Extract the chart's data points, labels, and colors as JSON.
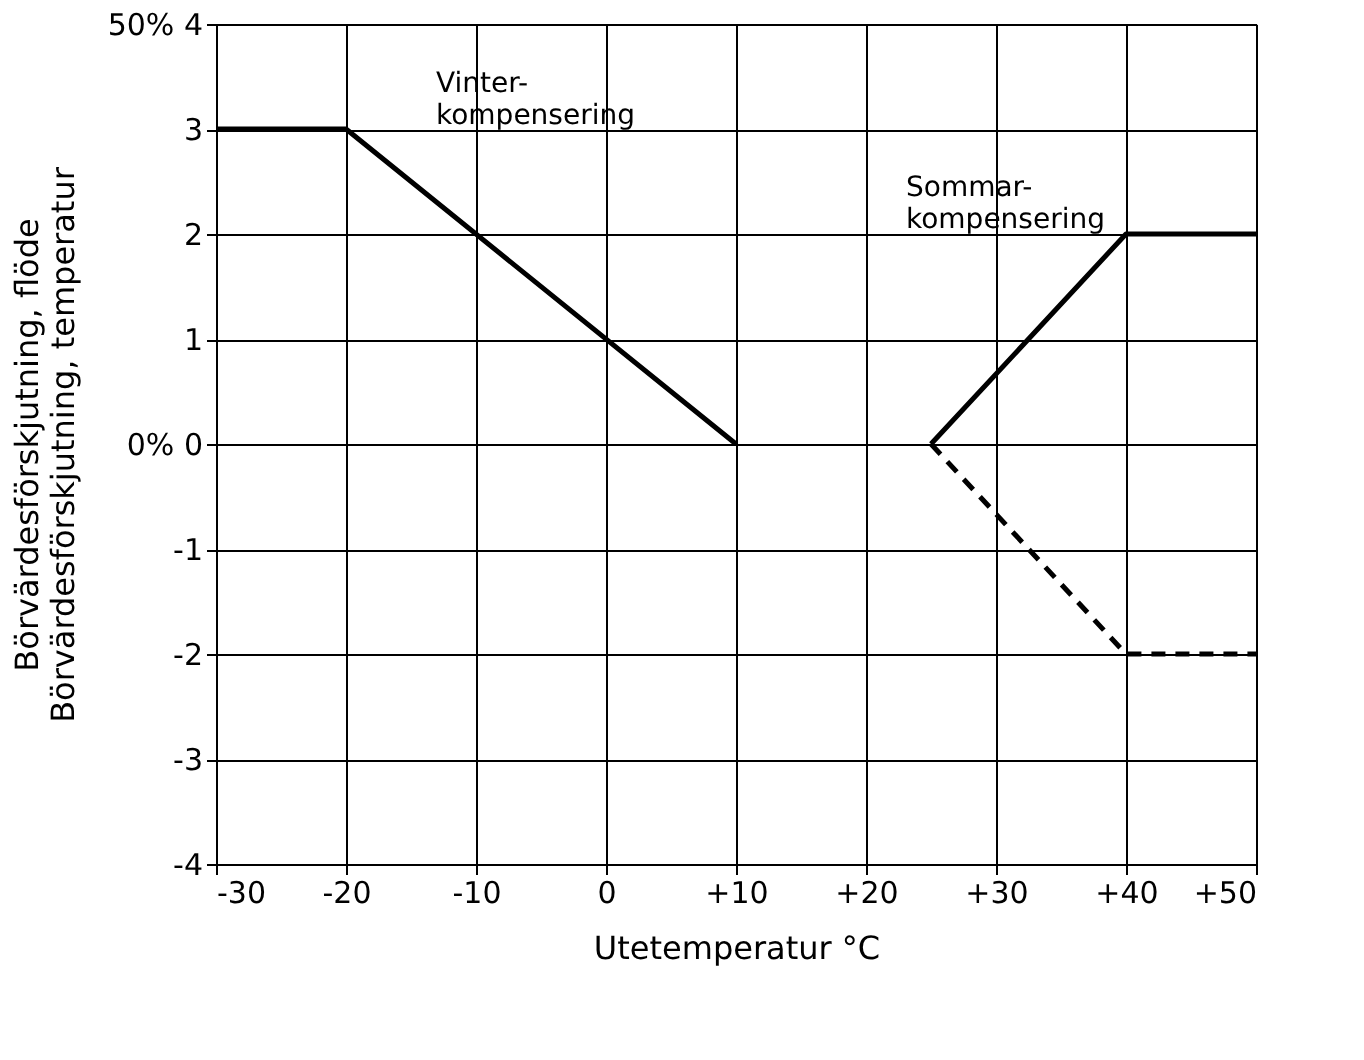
{
  "chart_data": {
    "type": "line",
    "xlabel": "Utetemperatur °C",
    "ylabel": "Börvärdesförskjutning, flöde\nBörvärdesförskjutning, temperatur",
    "xlim": [
      -30,
      50
    ],
    "ylim": [
      -4,
      4
    ],
    "xticks": [
      -30,
      -20,
      -10,
      0,
      {
        "value": 10,
        "label": "+10"
      },
      {
        "value": 20,
        "label": "+20"
      },
      {
        "value": 30,
        "label": "+30"
      },
      {
        "value": 40,
        "label": "+40"
      },
      {
        "value": 50,
        "label": "+50"
      }
    ],
    "yticks": [
      -4,
      -3,
      -2,
      -1,
      {
        "value": 0,
        "label": "0% 0"
      },
      1,
      2,
      3,
      {
        "value": 4,
        "label": "50% 4"
      }
    ],
    "grid": true,
    "series": [
      {
        "color": "#000000",
        "x": [
          -30,
          -20,
          10
        ],
        "values": [
          3,
          3,
          0
        ],
        "line_style": "solid"
      },
      {
        "color": "#000000",
        "x": [
          25,
          40,
          50
        ],
        "values": [
          0,
          2,
          2
        ],
        "line_style": "solid"
      },
      {
        "color": "#000000",
        "x": [
          25,
          40,
          50
        ],
        "values": [
          0,
          -2,
          -2
        ],
        "line_style": "dashed"
      }
    ],
    "annotations": [
      "Vinter-\nkompensering",
      "Sommar-\nkompensering"
    ]
  }
}
